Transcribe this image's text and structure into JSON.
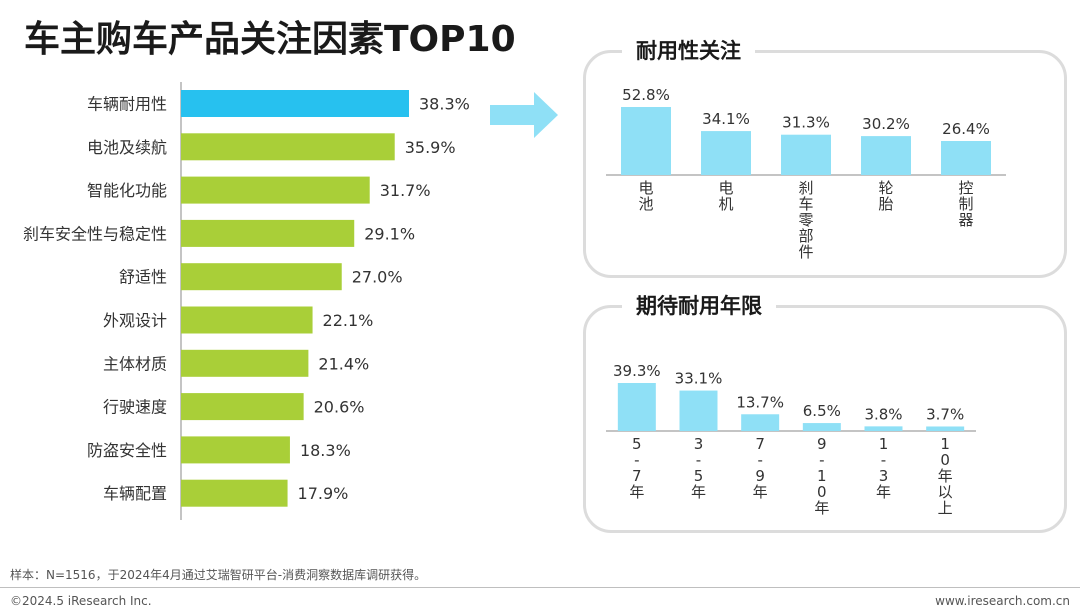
{
  "page": {
    "title": "车主购车产品关注因素TOP10",
    "note": "样本：N=1516，于2024年4月通过艾瑞智研平台-消费洞察数据库调研获得。",
    "footer_left": "©2024.5 iResearch Inc.",
    "footer_right": "www.iresearch.com.cn"
  },
  "colors": {
    "highlight_bar": "#27c1ef",
    "main_bar": "#a9cf38",
    "panel_bar": "#8fe0f6",
    "arrow": "#8fe0f6"
  },
  "chart_data": [
    {
      "type": "bar",
      "orientation": "horizontal",
      "title": "",
      "categories": [
        "车辆耐用性",
        "电池及续航",
        "智能化功能",
        "刹车安全性与稳定性",
        "舒适性",
        "外观设计",
        "主体材质",
        "行驶速度",
        "防盗安全性",
        "车辆配置"
      ],
      "values": [
        38.3,
        35.9,
        31.7,
        29.1,
        27.0,
        22.1,
        21.4,
        20.6,
        18.3,
        17.9
      ],
      "value_labels": [
        "38.3%",
        "35.9%",
        "31.7%",
        "29.1%",
        "27.0%",
        "22.1%",
        "21.4%",
        "20.6%",
        "18.3%",
        "17.9%"
      ],
      "highlight_index": 0,
      "unit": "%"
    },
    {
      "type": "bar",
      "title": "耐用性关注",
      "categories": [
        "电池",
        "电机",
        "刹车零部件",
        "轮胎",
        "控制器"
      ],
      "category_lines": [
        [
          "电",
          "池"
        ],
        [
          "电",
          "机"
        ],
        [
          "刹",
          "车",
          "零",
          "部",
          "件"
        ],
        [
          "轮",
          "胎"
        ],
        [
          "控",
          "制",
          "器"
        ]
      ],
      "values": [
        52.8,
        34.1,
        31.3,
        30.2,
        26.4
      ],
      "value_labels": [
        "52.8%",
        "34.1%",
        "31.3%",
        "30.2%",
        "26.4%"
      ],
      "unit": "%"
    },
    {
      "type": "bar",
      "title": "期待耐用年限",
      "categories": [
        "5-7年",
        "3-5年",
        "7-9年",
        "9-10年",
        "1-3年",
        "10年以上"
      ],
      "category_lines": [
        [
          "5",
          "-",
          "7",
          "年"
        ],
        [
          "3",
          "-",
          "5",
          "年"
        ],
        [
          "7",
          "-",
          "9",
          "年"
        ],
        [
          "9",
          "-",
          "1",
          "0",
          "年"
        ],
        [
          "1",
          "-",
          "3",
          "年"
        ],
        [
          "1",
          "0",
          "年",
          "以",
          "上"
        ]
      ],
      "values": [
        39.3,
        33.1,
        13.7,
        6.5,
        3.8,
        3.7
      ],
      "value_labels": [
        "39.3%",
        "33.1%",
        "13.7%",
        "6.5%",
        "3.8%",
        "3.7%"
      ],
      "unit": "%"
    }
  ]
}
